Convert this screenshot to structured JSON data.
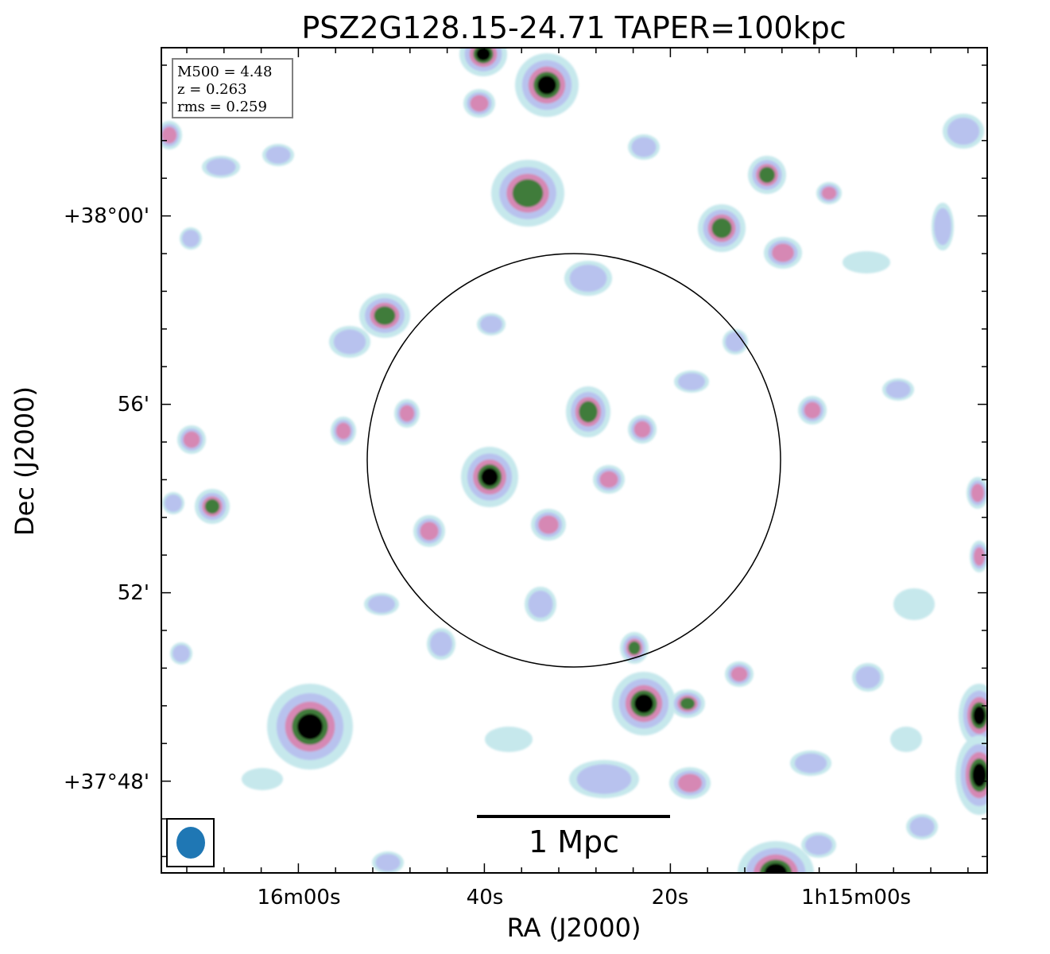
{
  "chart_data": {
    "type": "heatmap",
    "title": "PSZ2G128.15-24.71 TAPER=100kpc",
    "xlabel": "RA (J2000)",
    "ylabel": "Dec (J2000)",
    "x_ticks": [
      "16m00s",
      "40s",
      "20s",
      "1h15m00s"
    ],
    "y_ticks": [
      "+38°00'",
      "56'",
      "52'",
      "+37°48'"
    ],
    "info_box": [
      "M500 = 4.48",
      "z = 0.263",
      "rms = 0.259"
    ],
    "scalebar_label": "1 Mpc",
    "colors": {
      "faint": "#c6e8ec",
      "low": "#b8c2ee",
      "mid": "#d688b4",
      "high": "#3f7b3a",
      "peak": "#000000",
      "beam": "#1f77b4"
    },
    "overlays": [
      "cluster-circle",
      "beam-ellipse",
      "scale-bar",
      "info-box"
    ]
  }
}
